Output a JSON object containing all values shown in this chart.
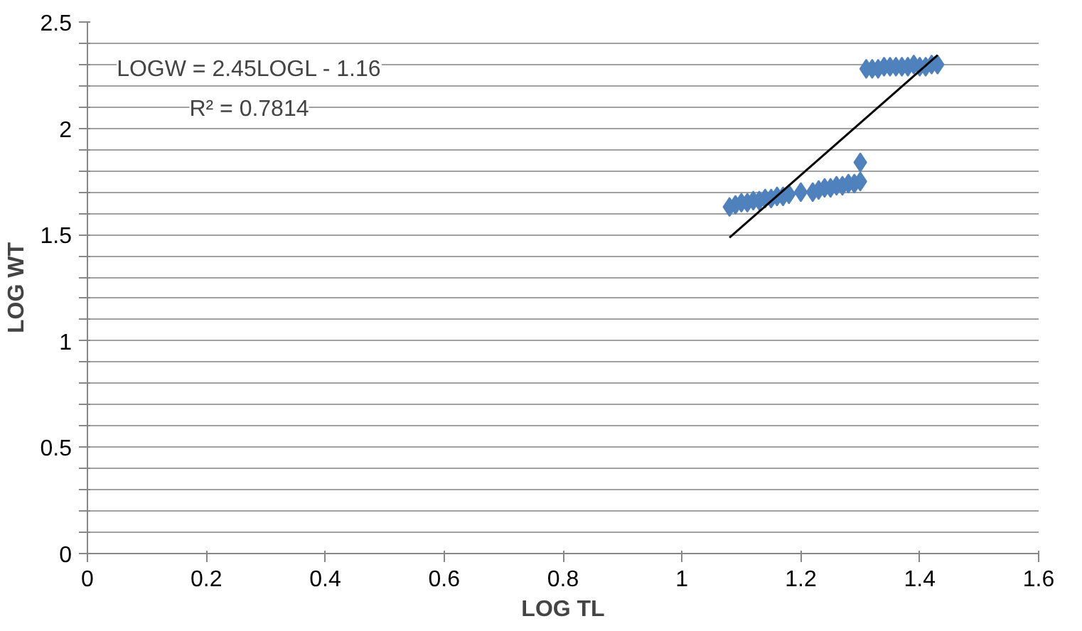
{
  "chart_data": {
    "type": "scatter",
    "xlabel": "LOG TL",
    "ylabel": "LOG WT",
    "marker": "diamond",
    "grid": "y",
    "annotations": [
      "LOGW = 2.45LOGL - 1.16",
      "R² = 0.7814"
    ],
    "xlim": [
      0,
      1.6
    ],
    "xticks": [
      0,
      0.2,
      0.4,
      0.6,
      0.8,
      1,
      1.2,
      1.4,
      1.6
    ],
    "ylim": [
      0,
      2.5
    ],
    "yticks": [
      0,
      {
        "value": 0.1,
        "label": null
      },
      {
        "value": 0.2,
        "label": null
      },
      {
        "value": 0.3,
        "label": null
      },
      {
        "value": 0.4,
        "label": null
      },
      0.5,
      {
        "value": 0.6,
        "label": null
      },
      {
        "value": 0.7,
        "label": null
      },
      {
        "value": 0.8,
        "label": null
      },
      {
        "value": 0.9,
        "label": null
      },
      1,
      {
        "value": 1.1,
        "label": null
      },
      {
        "value": 1.2,
        "label": null
      },
      {
        "value": 1.3,
        "label": null
      },
      {
        "value": 1.4,
        "label": null
      },
      1.5,
      {
        "value": 1.6,
        "label": null
      },
      {
        "value": 1.7,
        "label": null
      },
      {
        "value": 1.8,
        "label": null
      },
      {
        "value": 1.9,
        "label": null
      },
      2,
      {
        "value": 2.1,
        "label": null
      },
      {
        "value": 2.2,
        "label": null
      },
      {
        "value": 2.3,
        "label": null
      },
      {
        "value": 2.4,
        "label": null
      },
      2.5
    ],
    "series": [
      {
        "color": "#4f81bd",
        "x": [
          1.08,
          1.09,
          1.1,
          1.11,
          1.12,
          1.13,
          1.14,
          1.15,
          1.16,
          1.17,
          1.18,
          1.2,
          1.22,
          1.23,
          1.24,
          1.25,
          1.26,
          1.27,
          1.28,
          1.29,
          1.3,
          1.3,
          1.31,
          1.32,
          1.33,
          1.34,
          1.35,
          1.36,
          1.37,
          1.38,
          1.39,
          1.4,
          1.41,
          1.42,
          1.43
        ],
        "values": [
          1.63,
          1.64,
          1.65,
          1.65,
          1.66,
          1.66,
          1.67,
          1.67,
          1.68,
          1.68,
          1.69,
          1.7,
          1.7,
          1.71,
          1.72,
          1.72,
          1.73,
          1.73,
          1.74,
          1.74,
          1.75,
          1.84,
          2.28,
          2.28,
          2.28,
          2.29,
          2.29,
          2.29,
          2.29,
          2.29,
          2.3,
          2.29,
          2.29,
          2.3,
          2.3
        ]
      },
      {
        "type": "line",
        "color": "#000000",
        "marker": "none",
        "x": [
          1.08,
          1.43
        ],
        "values": [
          1.486,
          2.344
        ]
      }
    ]
  }
}
